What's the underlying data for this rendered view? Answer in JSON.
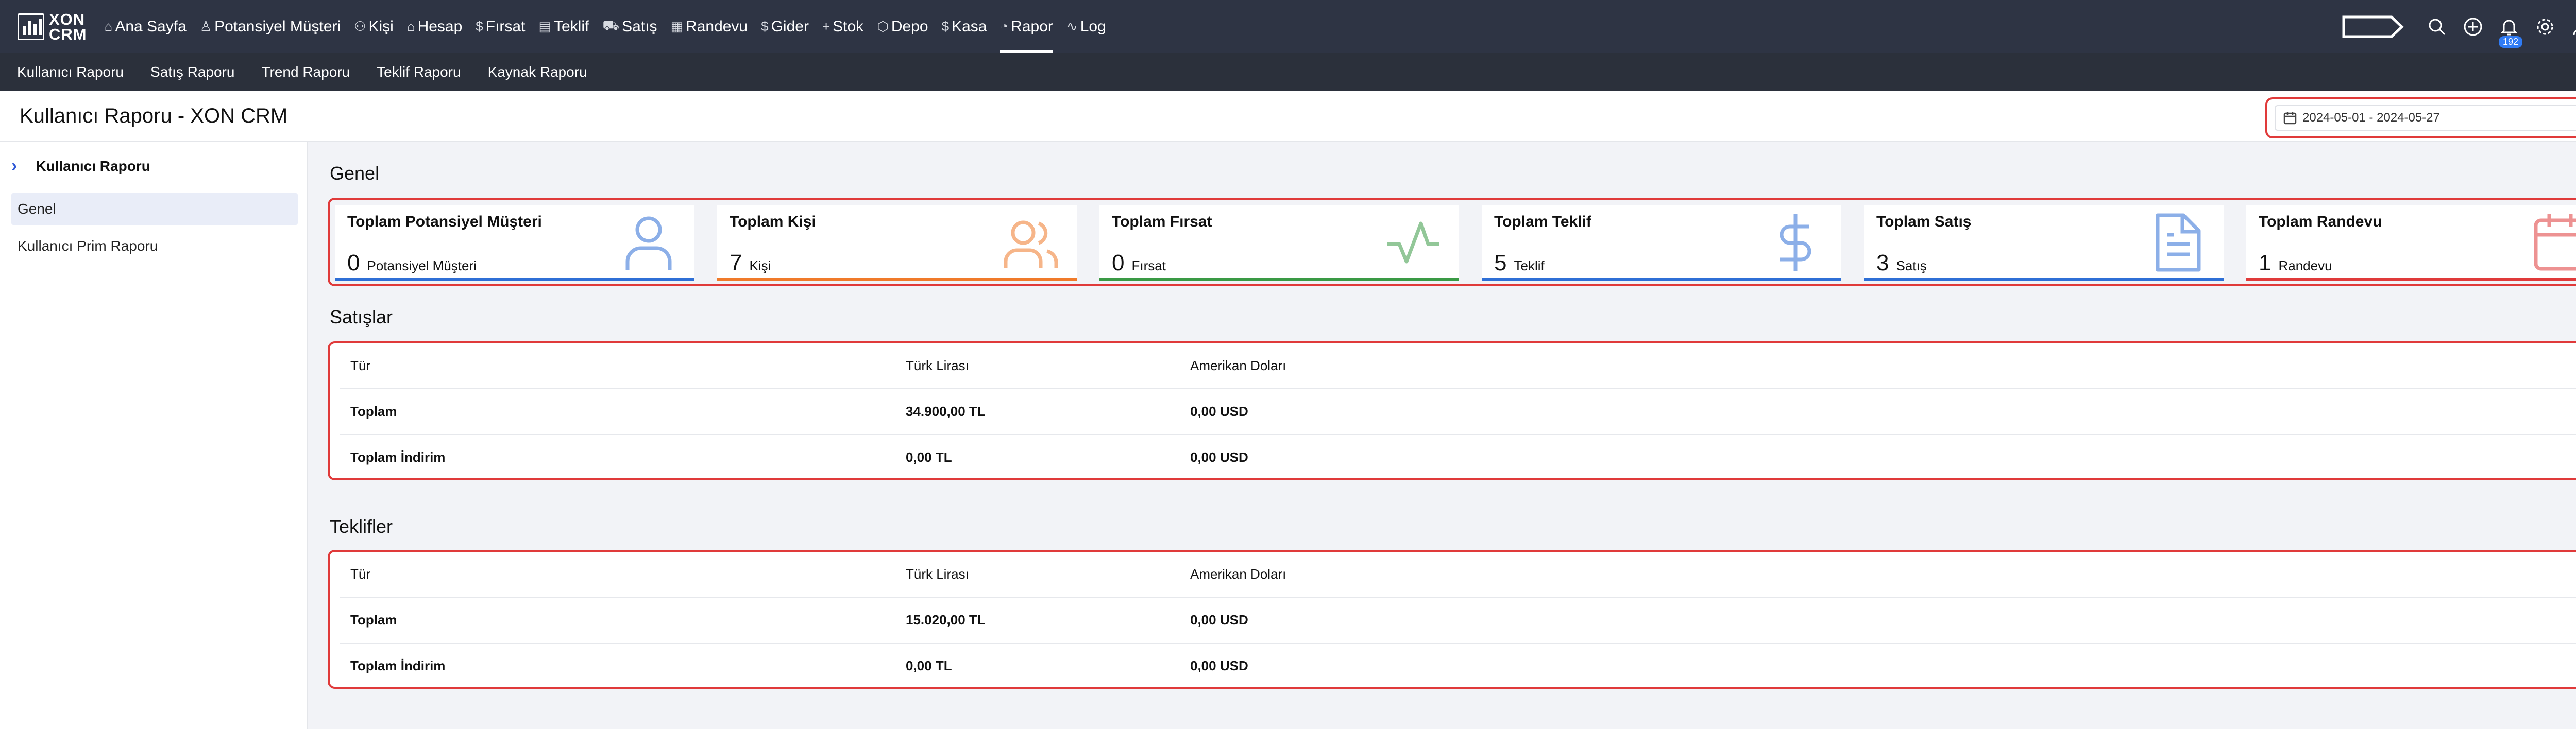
{
  "logo": {
    "text_line1": "XON",
    "text_line2": "CRM"
  },
  "nav": [
    {
      "icon": "home-icon",
      "glyph": "⌂",
      "label": "Ana Sayfa"
    },
    {
      "icon": "person-icon",
      "glyph": "♙",
      "label": "Potansiyel Müşteri"
    },
    {
      "icon": "people-icon",
      "glyph": "⚇",
      "label": "Kişi"
    },
    {
      "icon": "home-icon",
      "glyph": "⌂",
      "label": "Hesap"
    },
    {
      "icon": "dollar-icon",
      "glyph": "$",
      "label": "Fırsat"
    },
    {
      "icon": "document-icon",
      "glyph": "▤",
      "label": "Teklif"
    },
    {
      "icon": "cart-icon",
      "glyph": "⛟",
      "label": "Satış"
    },
    {
      "icon": "calendar-icon",
      "glyph": "▦",
      "label": "Randevu"
    },
    {
      "icon": "dollar-icon",
      "glyph": "$",
      "label": "Gider"
    },
    {
      "icon": "plus-icon",
      "glyph": "+",
      "label": "Stok"
    },
    {
      "icon": "box-icon",
      "glyph": "⬡",
      "label": "Depo"
    },
    {
      "icon": "dollar-icon",
      "glyph": "$",
      "label": "Kasa"
    },
    {
      "icon": "pie-icon",
      "glyph": "◔",
      "label": "Rapor"
    },
    {
      "icon": "activity-icon",
      "glyph": "∿",
      "label": "Log"
    }
  ],
  "active_nav": "Rapor",
  "notification_count": "192",
  "subnav": [
    "Kullanıcı Raporu",
    "Satış Raporu",
    "Trend Raporu",
    "Teklif Raporu",
    "Kaynak Raporu"
  ],
  "page_title": "Kullanıcı Raporu - XON CRM",
  "date_range": "2024-05-01 - 2024-05-27",
  "sidebar": {
    "header": "Kullanıcı Raporu",
    "items": [
      "Genel",
      "Kullanıcı Prim Raporu"
    ],
    "selected": "Genel"
  },
  "sections": {
    "general": "Genel",
    "sales": "Satışlar",
    "quotes": "Teklifler"
  },
  "stats": [
    {
      "label": "Toplam Potansiyel Müşteri",
      "value": "0",
      "unit": "Potansiyel Müşteri",
      "icon": "user-icon",
      "color": "#2f6fd6"
    },
    {
      "label": "Toplam Kişi",
      "value": "7",
      "unit": "Kişi",
      "icon": "users-icon",
      "color": "#f07a2a"
    },
    {
      "label": "Toplam Fırsat",
      "value": "0",
      "unit": "Fırsat",
      "icon": "activity-icon",
      "color": "#3a9a45"
    },
    {
      "label": "Toplam Teklif",
      "value": "5",
      "unit": "Teklif",
      "icon": "dollar-icon",
      "color": "#2f6fd6"
    },
    {
      "label": "Toplam Satış",
      "value": "3",
      "unit": "Satış",
      "icon": "document-icon",
      "color": "#2f6fd6"
    },
    {
      "label": "Toplam Randevu",
      "value": "1",
      "unit": "Randevu",
      "icon": "calendar-icon",
      "color": "#e03a3a"
    }
  ],
  "sales_table": {
    "headers": [
      "Tür",
      "Türk Lirası",
      "Amerikan Doları"
    ],
    "rows": [
      [
        "Toplam",
        "34.900,00 TL",
        "0,00 USD"
      ],
      [
        "Toplam İndirim",
        "0,00 TL",
        "0,00 USD"
      ]
    ]
  },
  "quotes_table": {
    "headers": [
      "Tür",
      "Türk Lirası",
      "Amerikan Doları"
    ],
    "rows": [
      [
        "Toplam",
        "15.020,00 TL",
        "0,00 USD"
      ],
      [
        "Toplam İndirim",
        "0,00 TL",
        "0,00 USD"
      ]
    ]
  }
}
